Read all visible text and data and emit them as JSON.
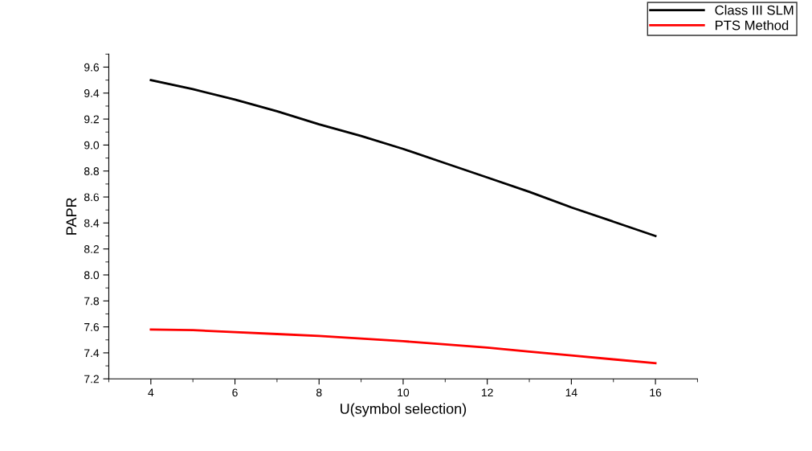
{
  "chart_data": {
    "type": "line",
    "xlabel": "U(symbol selection)",
    "ylabel": "PAPR",
    "x": [
      4,
      5,
      6,
      7,
      8,
      9,
      10,
      11,
      12,
      13,
      14,
      15,
      16
    ],
    "series": [
      {
        "name": "Class III SLM",
        "color": "#000000",
        "values": [
          9.5,
          9.43,
          9.35,
          9.26,
          9.16,
          9.07,
          8.97,
          8.86,
          8.75,
          8.64,
          8.52,
          8.41,
          8.3
        ]
      },
      {
        "name": "PTS Method",
        "color": "#ff0000",
        "values": [
          7.58,
          7.575,
          7.56,
          7.545,
          7.53,
          7.51,
          7.49,
          7.465,
          7.44,
          7.41,
          7.38,
          7.35,
          7.32
        ]
      }
    ],
    "xlim": [
      3,
      17
    ],
    "xticks": [
      4,
      6,
      8,
      10,
      12,
      14,
      16
    ],
    "ylim": [
      7.2,
      9.7
    ],
    "yticks": [
      {
        "value": 7.2,
        "label": "7.2"
      },
      {
        "value": 7.4,
        "label": "7.4"
      },
      {
        "value": 7.6,
        "label": "7.6"
      },
      {
        "value": 7.8,
        "label": "7.8"
      },
      {
        "value": 8.0,
        "label": "8.0"
      },
      {
        "value": 8.2,
        "label": "8.2"
      },
      {
        "value": 8.4,
        "label": "8.4"
      },
      {
        "value": 8.6,
        "label": "8.6"
      },
      {
        "value": 8.8,
        "label": "8.8"
      },
      {
        "value": 9.0,
        "label": "9.0"
      },
      {
        "value": 9.2,
        "label": "9.2"
      },
      {
        "value": 9.4,
        "label": "9.4"
      },
      {
        "value": 9.6,
        "label": "9.6"
      }
    ],
    "grid": false,
    "legend": "top right",
    "marker": "none",
    "line_style": "solid"
  }
}
